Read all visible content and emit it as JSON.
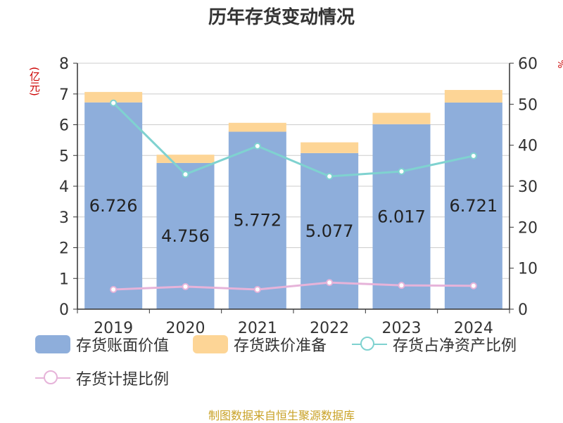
{
  "title": "历年存货变动情况",
  "left_unit": "(亿元)",
  "right_unit": "%",
  "footer": "制图数据来自恒生聚源数据库",
  "colors": {
    "book_value": "#8eaedb",
    "reserve": "#fdd596",
    "ratio_net_assets": "#7fd2d0",
    "provision_ratio": "#e6b3d9",
    "axis": "#333333",
    "grid": "#cccccc"
  },
  "chart_data": {
    "type": "bar",
    "categories": [
      "2019",
      "2020",
      "2021",
      "2022",
      "2023",
      "2024"
    ],
    "series": [
      {
        "name": "存货账面价值",
        "type": "bar",
        "stack": "inventory",
        "axis": "left",
        "values": [
          6.726,
          4.756,
          5.772,
          5.077,
          6.017,
          6.721
        ],
        "data_labels": [
          "6.726",
          "4.756",
          "5.772",
          "5.077",
          "6.017",
          "6.721"
        ]
      },
      {
        "name": "存货跌价准备",
        "type": "bar",
        "stack": "inventory",
        "axis": "left",
        "values": [
          0.34,
          0.27,
          0.29,
          0.35,
          0.37,
          0.41
        ]
      },
      {
        "name": "存货占净资产比例",
        "type": "line",
        "axis": "right",
        "values": [
          50.3,
          32.9,
          39.8,
          32.4,
          33.6,
          37.4
        ]
      },
      {
        "name": "存货计提比例",
        "type": "line",
        "axis": "right",
        "values": [
          4.8,
          5.5,
          4.8,
          6.5,
          5.8,
          5.7
        ]
      }
    ],
    "left_axis": {
      "ylim": [
        0,
        8
      ],
      "ticks": [
        "0",
        "1",
        "2",
        "3",
        "4",
        "5",
        "6",
        "7",
        "8"
      ]
    },
    "right_axis": {
      "ylim": [
        0,
        60
      ],
      "ticks": [
        "0",
        "10",
        "20",
        "30",
        "40",
        "50",
        "60"
      ]
    },
    "grid": true,
    "legend_position": "bottom"
  }
}
